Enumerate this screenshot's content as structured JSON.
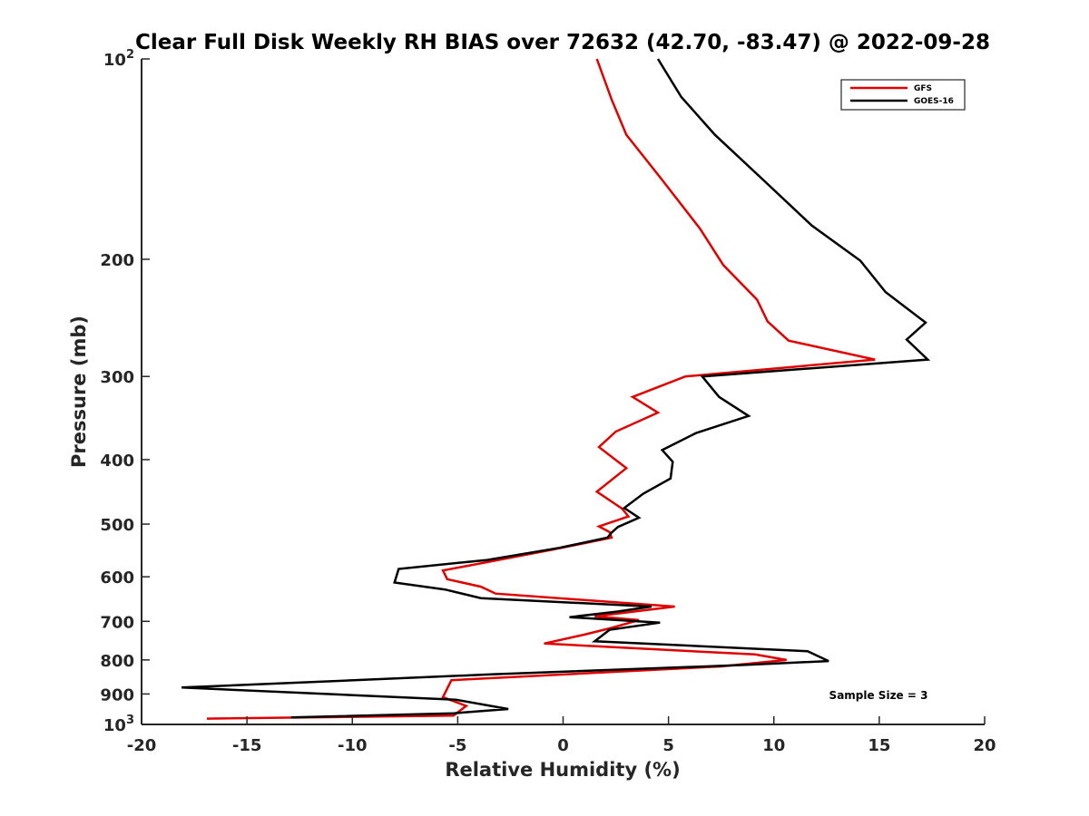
{
  "chart_data": {
    "type": "line",
    "title": "Clear Full Disk Weekly RH BIAS over 72632 (42.70, -83.47) @ 2022-09-28",
    "xlabel": "Relative Humidity (%)",
    "ylabel": "Pressure (mb)",
    "xlim": [
      -20,
      20
    ],
    "ylim": [
      100,
      1000
    ],
    "y_scale": "log",
    "y_reversed": true,
    "grid": false,
    "legend_position": "top-right",
    "x_ticks": [
      -20,
      -15,
      -10,
      -5,
      0,
      5,
      10,
      15,
      20
    ],
    "x_tick_labels": [
      "-20",
      "-15",
      "-10",
      "-5",
      "0",
      "5",
      "10",
      "15",
      "20"
    ],
    "y_ticks": [
      100,
      200,
      300,
      400,
      500,
      600,
      700,
      800,
      900,
      1000
    ],
    "y_tick_labels": [
      "10^2",
      "200",
      "300",
      "400",
      "500",
      "600",
      "700",
      "800",
      "900",
      "10^3"
    ],
    "annotation": "Sample Size = 3",
    "series": [
      {
        "name": "GFS",
        "color": "#e00000",
        "points": [
          [
            1.6,
            100
          ],
          [
            2.3,
            115
          ],
          [
            3.0,
            130
          ],
          [
            4.7,
            152
          ],
          [
            6.5,
            180
          ],
          [
            7.6,
            204
          ],
          [
            9.2,
            230
          ],
          [
            9.7,
            248
          ],
          [
            10.7,
            265
          ],
          [
            14.8,
            283
          ],
          [
            5.8,
            300
          ],
          [
            3.3,
            322
          ],
          [
            4.5,
            340
          ],
          [
            2.5,
            363
          ],
          [
            1.7,
            383
          ],
          [
            3.0,
            412
          ],
          [
            1.6,
            447
          ],
          [
            2.8,
            474
          ],
          [
            3.1,
            487
          ],
          [
            1.7,
            504
          ],
          [
            2.2,
            514
          ],
          [
            2.3,
            524
          ],
          [
            -0.6,
            547
          ],
          [
            -3.3,
            568
          ],
          [
            -5.7,
            587
          ],
          [
            -5.5,
            605
          ],
          [
            -3.9,
            621
          ],
          [
            -3.2,
            636
          ],
          [
            5.3,
            665
          ],
          [
            2.8,
            680
          ],
          [
            1.5,
            688
          ],
          [
            3.6,
            697
          ],
          [
            2.3,
            716
          ],
          [
            1.0,
            733
          ],
          [
            -0.9,
            756
          ],
          [
            9.1,
            785
          ],
          [
            10.6,
            800
          ],
          [
            7.5,
            818
          ],
          [
            -5.3,
            858
          ],
          [
            -5.7,
            910
          ],
          [
            -4.6,
            938
          ],
          [
            -5.2,
            970
          ],
          [
            -16.9,
            980
          ]
        ]
      },
      {
        "name": "GOES-16",
        "color": "#000000",
        "points": [
          [
            4.5,
            100
          ],
          [
            5.6,
            114
          ],
          [
            7.2,
            130
          ],
          [
            9.5,
            152
          ],
          [
            11.8,
            178
          ],
          [
            14.1,
            201
          ],
          [
            15.3,
            224
          ],
          [
            17.2,
            249
          ],
          [
            16.3,
            264
          ],
          [
            17.3,
            283
          ],
          [
            6.6,
            300
          ],
          [
            7.4,
            322
          ],
          [
            8.8,
            344
          ],
          [
            6.3,
            365
          ],
          [
            4.7,
            387
          ],
          [
            5.2,
            403
          ],
          [
            5.1,
            427
          ],
          [
            3.8,
            450
          ],
          [
            2.9,
            473
          ],
          [
            3.6,
            489
          ],
          [
            2.6,
            505
          ],
          [
            2.3,
            515
          ],
          [
            2.1,
            524
          ],
          [
            -0.2,
            543
          ],
          [
            -3.6,
            566
          ],
          [
            -7.8,
            584
          ],
          [
            -8.0,
            612
          ],
          [
            -5.6,
            627
          ],
          [
            -3.9,
            646
          ],
          [
            4.2,
            665
          ],
          [
            2.5,
            677
          ],
          [
            0.3,
            690
          ],
          [
            4.6,
            703
          ],
          [
            2.2,
            721
          ],
          [
            1.5,
            750
          ],
          [
            11.6,
            776
          ],
          [
            12.6,
            803
          ],
          [
            8.6,
            814
          ],
          [
            -3.4,
            841
          ],
          [
            -18.1,
            880
          ],
          [
            -5.1,
            918
          ],
          [
            -2.6,
            948
          ],
          [
            -5.2,
            962
          ],
          [
            -12.9,
            976
          ]
        ]
      }
    ]
  }
}
